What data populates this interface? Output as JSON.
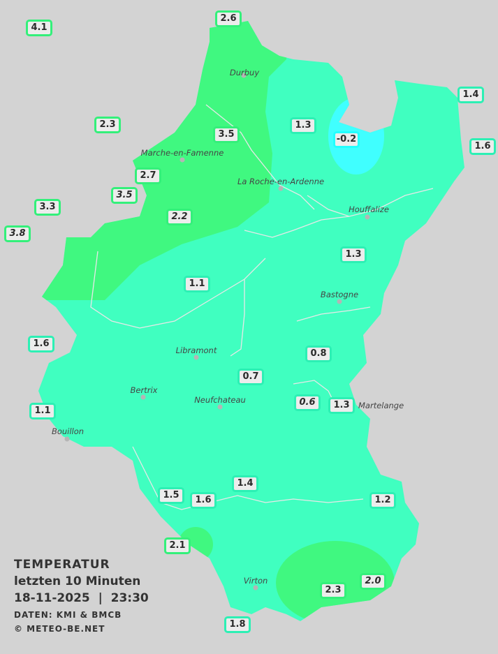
{
  "colors": {
    "zone_1c": "#40ffc0",
    "zone_2c": "#40f880",
    "zone_0c": "#40ffff",
    "background": "#d3d3d3"
  },
  "legend": {
    "title": "TEMPERATUR",
    "subtitle": "letzten 10 Minuten",
    "datetime": "18-11-2025  |  23:30",
    "source": "DATEN: KMI & BMCB",
    "copyright": "© METEO-BE.NET"
  },
  "towns": [
    "Durbuy",
    "Marche-en-Famenne",
    "La Roche-en-Ardenne",
    "Houffalize",
    "Bastogne",
    "Libramont",
    "Bertrix",
    "Neufchateau",
    "Bouillon",
    "Virton",
    "Martelange"
  ],
  "stations": [
    {
      "value": "4.1",
      "italic": false,
      "level": "green"
    },
    {
      "value": "2.6",
      "italic": false,
      "level": "green"
    },
    {
      "value": "1.4",
      "italic": false,
      "level": "teal"
    },
    {
      "value": "2.3",
      "italic": false,
      "level": "green"
    },
    {
      "value": "1.3",
      "italic": false,
      "level": "teal"
    },
    {
      "value": "-0.2",
      "italic": false,
      "level": "cyan"
    },
    {
      "value": "1.6",
      "italic": false,
      "level": "teal"
    },
    {
      "value": "3.5",
      "italic": false,
      "level": "green"
    },
    {
      "value": "2.7",
      "italic": false,
      "level": "green"
    },
    {
      "value": "3.5",
      "italic": true,
      "level": "green"
    },
    {
      "value": "3.3",
      "italic": false,
      "level": "green"
    },
    {
      "value": "3.8",
      "italic": true,
      "level": "green"
    },
    {
      "value": "2.2",
      "italic": true,
      "level": "green"
    },
    {
      "value": "1.3",
      "italic": false,
      "level": "teal"
    },
    {
      "value": "1.1",
      "italic": false,
      "level": "teal"
    },
    {
      "value": "1.6",
      "italic": false,
      "level": "teal"
    },
    {
      "value": "0.8",
      "italic": false,
      "level": "teal"
    },
    {
      "value": "0.7",
      "italic": false,
      "level": "teal"
    },
    {
      "value": "0.6",
      "italic": true,
      "level": "teal"
    },
    {
      "value": "1.3",
      "italic": false,
      "level": "teal"
    },
    {
      "value": "1.1",
      "italic": false,
      "level": "teal"
    },
    {
      "value": "1.4",
      "italic": false,
      "level": "teal"
    },
    {
      "value": "1.5",
      "italic": false,
      "level": "teal"
    },
    {
      "value": "1.6",
      "italic": false,
      "level": "teal"
    },
    {
      "value": "1.2",
      "italic": false,
      "level": "teal"
    },
    {
      "value": "2.1",
      "italic": false,
      "level": "green"
    },
    {
      "value": "2.0",
      "italic": true,
      "level": "green"
    },
    {
      "value": "2.3",
      "italic": false,
      "level": "green"
    },
    {
      "value": "1.8",
      "italic": false,
      "level": "teal"
    }
  ]
}
